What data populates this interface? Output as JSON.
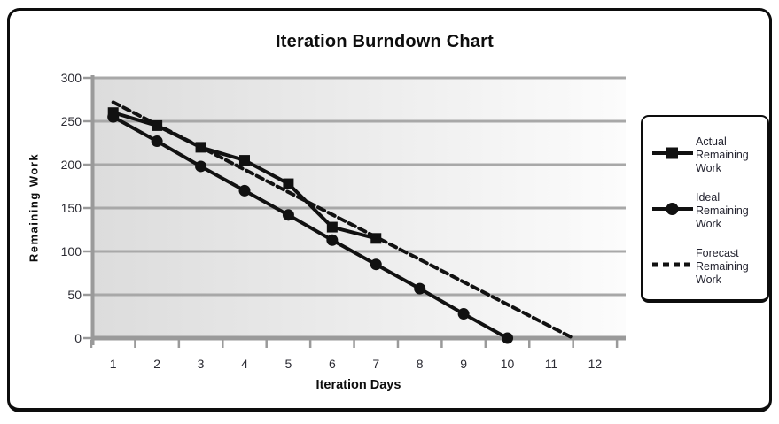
{
  "page": {
    "title": "Iteration Burndown Chart"
  },
  "chart_data": {
    "type": "line",
    "title": "Iteration Burndown Chart",
    "xlabel": "Iteration Days",
    "ylabel": "Remaining Work",
    "x_ticks": [
      "1",
      "2",
      "3",
      "4",
      "5",
      "6",
      "7",
      "8",
      "9",
      "10",
      "11",
      "12"
    ],
    "y_ticks": [
      300,
      250,
      200,
      150,
      100,
      50,
      0
    ],
    "xlim": [
      0.5,
      12.7
    ],
    "ylim": [
      0,
      300
    ],
    "grid": "horizontal",
    "legend_position": "right",
    "series": [
      {
        "name": "Actual Remaining Work",
        "marker": "square",
        "line": "solid",
        "x": [
          1,
          2,
          3,
          4,
          5,
          6,
          7
        ],
        "values": [
          260,
          245,
          220,
          205,
          178,
          128,
          115
        ]
      },
      {
        "name": "Ideal Remaining Work",
        "marker": "circle",
        "line": "solid",
        "x": [
          1,
          2,
          3,
          4,
          5,
          6,
          7,
          8,
          9,
          10
        ],
        "values": [
          255,
          227,
          198,
          170,
          142,
          113,
          85,
          57,
          28,
          0
        ]
      },
      {
        "name": "Forecast Remaining Work",
        "marker": "none",
        "line": "dashed",
        "x": [
          1,
          11.5
        ],
        "values": [
          272,
          0
        ]
      }
    ]
  },
  "colors": {
    "series_line": "#111111",
    "grid": "#a8a8a8",
    "axis": "#9a9a9a",
    "plot_bg_left": "#dcdcdc",
    "plot_bg_right": "#fcfcfc",
    "frame_border": "#0d0d0d",
    "tick_text": "#2b2b33",
    "legend_text": "#23232f"
  }
}
